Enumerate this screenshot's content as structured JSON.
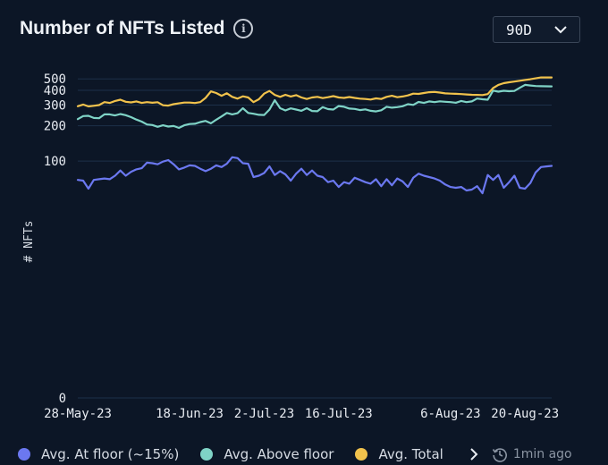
{
  "header": {
    "title": "Number of NFTs Listed",
    "info_icon": "info-icon",
    "range_value": "90D",
    "range_icon": "chevron-down-icon"
  },
  "footer": {
    "next_icon": "chevron-right-icon",
    "clock_icon": "history-icon",
    "updated": "1min ago"
  },
  "colors": {
    "background": "#0c1626",
    "gridline": "#1d3049",
    "at_floor": "#6b78f0",
    "above_floor": "#7fd3c6",
    "total": "#f1c24c"
  },
  "chart_data": {
    "type": "line",
    "ylabel": "# NFTs",
    "xlabel": "",
    "y_scale": "log(1+x)",
    "ylim": [
      0,
      520
    ],
    "yticks": [
      0,
      100,
      200,
      300,
      400,
      500
    ],
    "xlim": [
      "2023-05-28",
      "2023-08-25"
    ],
    "xticks": [
      {
        "date": "2023-05-28",
        "label": "28-May-23"
      },
      {
        "date": "2023-06-18",
        "label": "18-Jun-23"
      },
      {
        "date": "2023-07-02",
        "label": "2-Jul-23"
      },
      {
        "date": "2023-07-16",
        "label": "16-Jul-23"
      },
      {
        "date": "2023-08-06",
        "label": "6-Aug-23"
      },
      {
        "date": "2023-08-20",
        "label": "20-Aug-23"
      }
    ],
    "grid": true,
    "legend_position": "bottom-left",
    "x": [
      "2023-05-28",
      "2023-05-29",
      "2023-05-30",
      "2023-05-31",
      "2023-06-01",
      "2023-06-02",
      "2023-06-03",
      "2023-06-04",
      "2023-06-05",
      "2023-06-06",
      "2023-06-07",
      "2023-06-08",
      "2023-06-09",
      "2023-06-10",
      "2023-06-11",
      "2023-06-12",
      "2023-06-13",
      "2023-06-14",
      "2023-06-15",
      "2023-06-16",
      "2023-06-17",
      "2023-06-18",
      "2023-06-19",
      "2023-06-20",
      "2023-06-21",
      "2023-06-22",
      "2023-06-23",
      "2023-06-24",
      "2023-06-25",
      "2023-06-26",
      "2023-06-27",
      "2023-06-28",
      "2023-06-29",
      "2023-06-30",
      "2023-07-01",
      "2023-07-02",
      "2023-07-03",
      "2023-07-04",
      "2023-07-05",
      "2023-07-06",
      "2023-07-07",
      "2023-07-08",
      "2023-07-09",
      "2023-07-10",
      "2023-07-11",
      "2023-07-12",
      "2023-07-13",
      "2023-07-14",
      "2023-07-15",
      "2023-07-16",
      "2023-07-17",
      "2023-07-18",
      "2023-07-19",
      "2023-07-20",
      "2023-07-21",
      "2023-07-22",
      "2023-07-23",
      "2023-07-24",
      "2023-07-25",
      "2023-07-26",
      "2023-07-27",
      "2023-07-28",
      "2023-07-29",
      "2023-07-30",
      "2023-07-31",
      "2023-08-01",
      "2023-08-02",
      "2023-08-03",
      "2023-08-04",
      "2023-08-05",
      "2023-08-06",
      "2023-08-07",
      "2023-08-08",
      "2023-08-09",
      "2023-08-10",
      "2023-08-11",
      "2023-08-12",
      "2023-08-13",
      "2023-08-14",
      "2023-08-15",
      "2023-08-16",
      "2023-08-17",
      "2023-08-18",
      "2023-08-19",
      "2023-08-20",
      "2023-08-21",
      "2023-08-22",
      "2023-08-23",
      "2023-08-24",
      "2023-08-25"
    ],
    "series": [
      {
        "name": "Avg. At floor (~15%)",
        "color": "#6b78f0",
        "values": [
          69,
          68,
          58,
          69,
          70,
          71,
          70,
          75,
          83,
          75,
          81,
          85,
          87,
          97,
          96,
          94,
          99,
          102,
          94,
          85,
          88,
          92,
          91,
          86,
          82,
          86,
          92,
          89,
          95,
          108,
          106,
          96,
          95,
          73,
          75,
          79,
          90,
          76,
          82,
          77,
          68,
          78,
          86,
          76,
          83,
          75,
          73,
          66,
          68,
          60,
          66,
          64,
          72,
          69,
          66,
          64,
          70,
          61,
          70,
          62,
          71,
          67,
          60,
          72,
          78,
          75,
          73,
          71,
          68,
          63,
          60,
          59,
          60,
          56,
          57,
          61,
          53,
          76,
          69,
          76,
          59,
          66,
          75,
          59,
          58,
          65,
          80,
          89,
          90,
          91
        ]
      },
      {
        "name": "Avg. Above floor",
        "color": "#7fd3c6",
        "values": [
          228,
          242,
          243,
          233,
          232,
          250,
          250,
          245,
          252,
          246,
          237,
          226,
          217,
          205,
          203,
          196,
          202,
          197,
          199,
          192,
          202,
          207,
          208,
          215,
          220,
          210,
          225,
          240,
          257,
          250,
          256,
          282,
          257,
          253,
          248,
          247,
          275,
          330,
          282,
          270,
          281,
          275,
          268,
          282,
          267,
          266,
          288,
          277,
          275,
          294,
          290,
          280,
          278,
          272,
          276,
          268,
          265,
          271,
          290,
          285,
          288,
          293,
          305,
          301,
          319,
          313,
          322,
          318,
          323,
          320,
          318,
          314,
          325,
          318,
          322,
          341,
          336,
          333,
          398,
          390,
          397,
          393,
          395,
          420,
          445,
          440,
          435,
          434,
          433,
          432
        ]
      },
      {
        "name": "Avg. Total",
        "color": "#f1c24c",
        "values": [
          293,
          303,
          292,
          296,
          300,
          318,
          313,
          325,
          333,
          320,
          316,
          322,
          313,
          318,
          314,
          317,
          299,
          297,
          305,
          310,
          315,
          315,
          312,
          318,
          345,
          392,
          380,
          360,
          378,
          352,
          340,
          356,
          348,
          318,
          336,
          375,
          395,
          366,
          352,
          367,
          355,
          364,
          348,
          338,
          348,
          352,
          344,
          350,
          357,
          348,
          345,
          351,
          345,
          340,
          338,
          334,
          342,
          338,
          352,
          360,
          350,
          355,
          362,
          375,
          373,
          380,
          386,
          388,
          383,
          377,
          375,
          374,
          372,
          369,
          367,
          366,
          365,
          372,
          418,
          445,
          460,
          468,
          475,
          482,
          490,
          497,
          506,
          515,
          515,
          515
        ]
      }
    ]
  }
}
